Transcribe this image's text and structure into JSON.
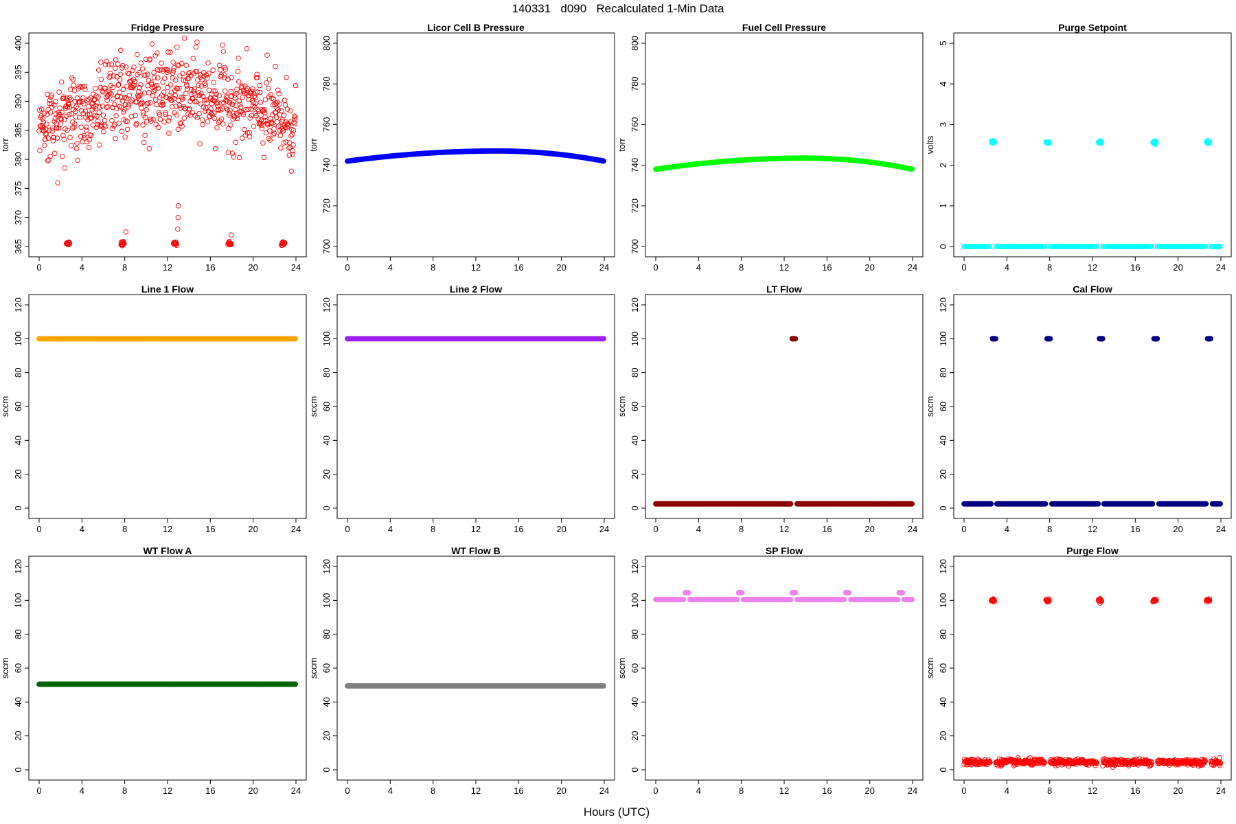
{
  "figure": {
    "title": "140331   d090   Recalculated 1-Min Data",
    "xlabel": "Hours (UTC)"
  },
  "chart_data": [
    {
      "type": "scatter",
      "title": "Fridge Pressure",
      "ylabel": "torr",
      "xlim": [
        0,
        24
      ],
      "ylim": [
        365,
        400
      ],
      "xticks": [
        0,
        4,
        8,
        12,
        16,
        20,
        24
      ],
      "yticks": [
        365,
        370,
        375,
        380,
        385,
        390,
        395,
        400
      ],
      "color": "#ff0000",
      "marker": "open-circle",
      "pattern": "noisy-arc",
      "base": 385.5,
      "peak": 391.5,
      "noise": 3.5,
      "cycle_hours": [
        2.7,
        7.8,
        12.7,
        17.8,
        22.8
      ],
      "cycle_value": 365.5,
      "cycle_extra": [
        [
          12.95,
          368
        ],
        [
          12.98,
          370
        ],
        [
          13.0,
          372
        ],
        [
          8.1,
          367.5
        ],
        [
          17.95,
          367
        ]
      ]
    },
    {
      "type": "scatter",
      "title": "Licor Cell B Pressure",
      "ylabel": "torr",
      "xlim": [
        0,
        24
      ],
      "ylim": [
        700,
        800
      ],
      "xticks": [
        0,
        4,
        8,
        12,
        16,
        20,
        24
      ],
      "yticks": [
        700,
        720,
        740,
        760,
        780,
        800
      ],
      "color": "#0000ff",
      "marker": "filled-circle",
      "pattern": "arc",
      "base": 742,
      "peak": 747,
      "peak_hour": 14
    },
    {
      "type": "scatter",
      "title": "Fuel Cell Pressure",
      "ylabel": "torr",
      "xlim": [
        0,
        24
      ],
      "ylim": [
        700,
        800
      ],
      "xticks": [
        0,
        4,
        8,
        12,
        16,
        20,
        24
      ],
      "yticks": [
        700,
        720,
        740,
        760,
        780,
        800
      ],
      "color": "#00ff00",
      "marker": "filled-circle",
      "pattern": "arc",
      "base": 738,
      "peak": 743.5,
      "peak_hour": 14
    },
    {
      "type": "scatter",
      "title": "Purge Setpoint",
      "ylabel": "volts",
      "xlim": [
        0,
        24
      ],
      "ylim": [
        0,
        5
      ],
      "xticks": [
        0,
        4,
        8,
        12,
        16,
        20,
        24
      ],
      "yticks": [
        0,
        1,
        2,
        3,
        4,
        5
      ],
      "color": "#00ffff",
      "marker": "open-circle",
      "pattern": "flat",
      "base": 0,
      "cycle_hours": [
        2.7,
        7.8,
        12.7,
        17.8,
        22.8
      ],
      "cycle_value": 2.57
    },
    {
      "type": "scatter",
      "title": "Line 1 Flow",
      "ylabel": "sccm",
      "xlim": [
        0,
        24
      ],
      "ylim": [
        0,
        120
      ],
      "xticks": [
        0,
        4,
        8,
        12,
        16,
        20,
        24
      ],
      "yticks": [
        0,
        20,
        40,
        60,
        80,
        100,
        120
      ],
      "color": "#ffa500",
      "marker": "filled-circle",
      "pattern": "flat",
      "base": 100
    },
    {
      "type": "scatter",
      "title": "Line 2 Flow",
      "ylabel": "sccm",
      "xlim": [
        0,
        24
      ],
      "ylim": [
        0,
        120
      ],
      "xticks": [
        0,
        4,
        8,
        12,
        16,
        20,
        24
      ],
      "yticks": [
        0,
        20,
        40,
        60,
        80,
        100,
        120
      ],
      "color": "#a020f0",
      "marker": "filled-circle",
      "pattern": "flat",
      "base": 100
    },
    {
      "type": "scatter",
      "title": "LT Flow",
      "ylabel": "sccm",
      "xlim": [
        0,
        24
      ],
      "ylim": [
        0,
        120
      ],
      "xticks": [
        0,
        4,
        8,
        12,
        16,
        20,
        24
      ],
      "yticks": [
        0,
        20,
        40,
        60,
        80,
        100,
        120
      ],
      "color": "#8b0000",
      "marker": "filled-circle",
      "pattern": "flat",
      "base": 2.5,
      "cycle_hours": [
        12.9
      ],
      "cycle_value": 100
    },
    {
      "type": "scatter",
      "title": "Cal Flow",
      "ylabel": "sccm",
      "xlim": [
        0,
        24
      ],
      "ylim": [
        0,
        120
      ],
      "xticks": [
        0,
        4,
        8,
        12,
        16,
        20,
        24
      ],
      "yticks": [
        0,
        20,
        40,
        60,
        80,
        100,
        120
      ],
      "color": "#000080",
      "marker": "filled-circle",
      "pattern": "flat",
      "base": 2.5,
      "cycle_hours": [
        2.8,
        7.9,
        12.8,
        17.9,
        22.9
      ],
      "cycle_value": 100
    },
    {
      "type": "scatter",
      "title": "WT Flow A",
      "ylabel": "sccm",
      "xlim": [
        0,
        24
      ],
      "ylim": [
        0,
        120
      ],
      "xticks": [
        0,
        4,
        8,
        12,
        16,
        20,
        24
      ],
      "yticks": [
        0,
        20,
        40,
        60,
        80,
        100,
        120
      ],
      "color": "#006400",
      "marker": "filled-circle",
      "pattern": "flat",
      "base": 50.5
    },
    {
      "type": "scatter",
      "title": "WT Flow B",
      "ylabel": "sccm",
      "xlim": [
        0,
        24
      ],
      "ylim": [
        0,
        120
      ],
      "xticks": [
        0,
        4,
        8,
        12,
        16,
        20,
        24
      ],
      "yticks": [
        0,
        20,
        40,
        60,
        80,
        100,
        120
      ],
      "color": "#808080",
      "marker": "filled-circle",
      "pattern": "flat",
      "base": 49.5
    },
    {
      "type": "scatter",
      "title": "SP Flow",
      "ylabel": "sccm",
      "xlim": [
        0,
        24
      ],
      "ylim": [
        0,
        120
      ],
      "xticks": [
        0,
        4,
        8,
        12,
        16,
        20,
        24
      ],
      "yticks": [
        0,
        20,
        40,
        60,
        80,
        100,
        120
      ],
      "color": "#ee82ee",
      "marker": "filled-circle",
      "pattern": "flat",
      "base": 100.5,
      "cycle_hours": [
        2.9,
        7.9,
        12.9,
        17.9,
        22.9
      ],
      "cycle_value": 104.5
    },
    {
      "type": "scatter",
      "title": "Purge Flow",
      "ylabel": "sccm",
      "xlim": [
        0,
        24
      ],
      "ylim": [
        0,
        120
      ],
      "xticks": [
        0,
        4,
        8,
        12,
        16,
        20,
        24
      ],
      "yticks": [
        0,
        20,
        40,
        60,
        80,
        100,
        120
      ],
      "color": "#ff0000",
      "marker": "open-circle",
      "pattern": "noisy-flat",
      "base": 4.5,
      "noise": 1.5,
      "cycle_hours": [
        2.7,
        7.8,
        12.7,
        17.8,
        22.8
      ],
      "cycle_value": 100
    }
  ]
}
